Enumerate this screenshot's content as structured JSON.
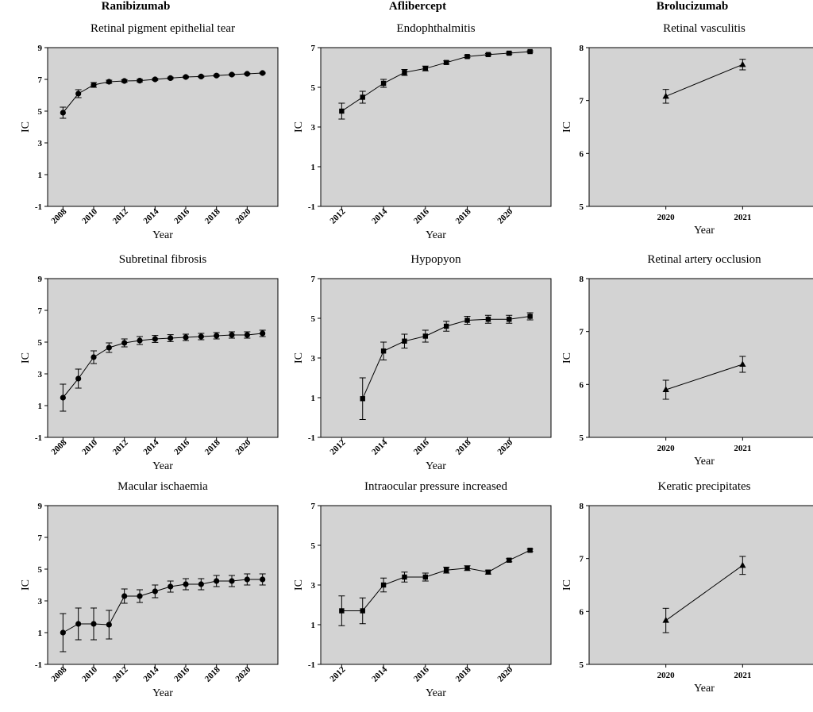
{
  "column_titles": [
    "Ranibizumab",
    "Aflibercept",
    "Brolucizumab"
  ],
  "colors": {
    "plot_background": "#d3d3d3",
    "line": "#000000"
  },
  "chart_data": [
    {
      "type": "line",
      "title": "Retinal pigment epithelial tear",
      "xlabel": "Year",
      "ylabel": "IC",
      "marker": "circle",
      "xlim": [
        2007,
        2022
      ],
      "ylim": [
        -1,
        9
      ],
      "yticks": [
        -1,
        1,
        3,
        5,
        7,
        9
      ],
      "xticks": [
        2008,
        2010,
        2012,
        2014,
        2016,
        2018,
        2020
      ],
      "x": [
        2008,
        2009,
        2010,
        2011,
        2012,
        2013,
        2014,
        2015,
        2016,
        2017,
        2018,
        2019,
        2020,
        2021
      ],
      "values": [
        4.9,
        6.1,
        6.65,
        6.85,
        6.9,
        6.92,
        7.0,
        7.08,
        7.15,
        7.18,
        7.24,
        7.3,
        7.35,
        7.4
      ],
      "err": [
        0.35,
        0.25,
        0.15,
        0.1,
        0.08,
        0.08,
        0.06,
        0.06,
        0.05,
        0.05,
        0.05,
        0.04,
        0.04,
        0.04
      ]
    },
    {
      "type": "line",
      "title": "Endophthalmitis",
      "xlabel": "Year",
      "ylabel": "IC",
      "marker": "square",
      "xlim": [
        2011,
        2022
      ],
      "ylim": [
        -1,
        7
      ],
      "yticks": [
        -1,
        1,
        3,
        5,
        7
      ],
      "xticks": [
        2012,
        2014,
        2016,
        2018,
        2020
      ],
      "x": [
        2012,
        2013,
        2014,
        2015,
        2016,
        2017,
        2018,
        2019,
        2020,
        2021
      ],
      "values": [
        3.8,
        4.5,
        5.2,
        5.75,
        5.95,
        6.25,
        6.55,
        6.65,
        6.72,
        6.8
      ],
      "err": [
        0.4,
        0.3,
        0.2,
        0.15,
        0.12,
        0.08,
        0.06,
        0.05,
        0.05,
        0.04
      ]
    },
    {
      "type": "line",
      "title": "Retinal vasculitis",
      "xlabel": "Year",
      "ylabel": "IC",
      "marker": "triangle",
      "xlim": [
        2019,
        2022
      ],
      "ylim": [
        5,
        8
      ],
      "yticks": [
        5,
        6,
        7,
        8
      ],
      "xticks": [
        2020,
        2021
      ],
      "x": [
        2020,
        2021
      ],
      "values": [
        7.08,
        7.68
      ],
      "err": [
        0.13,
        0.1
      ]
    },
    {
      "type": "line",
      "title": "Subretinal fibrosis",
      "xlabel": "Year",
      "ylabel": "IC",
      "marker": "circle",
      "xlim": [
        2007,
        2022
      ],
      "ylim": [
        -1,
        9
      ],
      "yticks": [
        -1,
        1,
        3,
        5,
        7,
        9
      ],
      "xticks": [
        2008,
        2010,
        2012,
        2014,
        2016,
        2018,
        2020
      ],
      "x": [
        2008,
        2009,
        2010,
        2011,
        2012,
        2013,
        2014,
        2015,
        2016,
        2017,
        2018,
        2019,
        2020,
        2021
      ],
      "values": [
        1.5,
        2.7,
        4.05,
        4.65,
        4.95,
        5.1,
        5.2,
        5.25,
        5.3,
        5.35,
        5.4,
        5.45,
        5.45,
        5.55
      ],
      "err": [
        0.85,
        0.6,
        0.4,
        0.3,
        0.25,
        0.25,
        0.22,
        0.22,
        0.2,
        0.2,
        0.2,
        0.2,
        0.2,
        0.2
      ]
    },
    {
      "type": "line",
      "title": "Hypopyon",
      "xlabel": "Year",
      "ylabel": "IC",
      "marker": "square",
      "xlim": [
        2011,
        2022
      ],
      "ylim": [
        -1,
        7
      ],
      "yticks": [
        -1,
        1,
        3,
        5,
        7
      ],
      "xticks": [
        2012,
        2014,
        2016,
        2018,
        2020
      ],
      "x": [
        2013,
        2014,
        2015,
        2016,
        2017,
        2018,
        2019,
        2020,
        2021
      ],
      "values": [
        0.95,
        3.35,
        3.85,
        4.1,
        4.6,
        4.9,
        4.95,
        4.95,
        5.1
      ],
      "err": [
        1.05,
        0.45,
        0.35,
        0.3,
        0.25,
        0.2,
        0.2,
        0.2,
        0.18
      ]
    },
    {
      "type": "line",
      "title": "Retinal artery occlusion",
      "xlabel": "Year",
      "ylabel": "IC",
      "marker": "triangle",
      "xlim": [
        2019,
        2022
      ],
      "ylim": [
        5,
        8
      ],
      "yticks": [
        5,
        6,
        7,
        8
      ],
      "xticks": [
        2020,
        2021
      ],
      "x": [
        2020,
        2021
      ],
      "values": [
        5.9,
        6.38
      ],
      "err": [
        0.18,
        0.15
      ]
    },
    {
      "type": "line",
      "title": "Macular ischaemia",
      "xlabel": "Year",
      "ylabel": "IC",
      "marker": "circle",
      "xlim": [
        2007,
        2022
      ],
      "ylim": [
        -1,
        9
      ],
      "yticks": [
        -1,
        1,
        3,
        5,
        7,
        9
      ],
      "xticks": [
        2008,
        2010,
        2012,
        2014,
        2016,
        2018,
        2020
      ],
      "x": [
        2008,
        2009,
        2010,
        2011,
        2012,
        2013,
        2014,
        2015,
        2016,
        2017,
        2018,
        2019,
        2020,
        2021
      ],
      "values": [
        1.0,
        1.55,
        1.55,
        1.5,
        3.3,
        3.3,
        3.6,
        3.9,
        4.05,
        4.05,
        4.25,
        4.25,
        4.35,
        4.35
      ],
      "err": [
        1.2,
        1.0,
        1.0,
        0.9,
        0.45,
        0.4,
        0.4,
        0.35,
        0.35,
        0.35,
        0.35,
        0.35,
        0.35,
        0.35
      ]
    },
    {
      "type": "line",
      "title": "Intraocular pressure increased",
      "xlabel": "Year",
      "ylabel": "IC",
      "marker": "square",
      "xlim": [
        2011,
        2022
      ],
      "ylim": [
        -1,
        7
      ],
      "yticks": [
        -1,
        1,
        3,
        5,
        7
      ],
      "xticks": [
        2012,
        2014,
        2016,
        2018,
        2020
      ],
      "x": [
        2012,
        2013,
        2014,
        2015,
        2016,
        2017,
        2018,
        2019,
        2020,
        2021
      ],
      "values": [
        1.7,
        1.7,
        3.0,
        3.4,
        3.4,
        3.75,
        3.85,
        3.65,
        4.25,
        4.75
      ],
      "err": [
        0.75,
        0.65,
        0.35,
        0.25,
        0.2,
        0.15,
        0.12,
        0.1,
        0.08,
        0.06
      ]
    },
    {
      "type": "line",
      "title": "Keratic precipitates",
      "xlabel": "Year",
      "ylabel": "IC",
      "marker": "triangle",
      "xlim": [
        2019,
        2022
      ],
      "ylim": [
        5,
        8
      ],
      "yticks": [
        5,
        6,
        7,
        8
      ],
      "xticks": [
        2020,
        2021
      ],
      "x": [
        2020,
        2021
      ],
      "values": [
        5.83,
        6.87
      ],
      "err": [
        0.23,
        0.17
      ]
    }
  ]
}
